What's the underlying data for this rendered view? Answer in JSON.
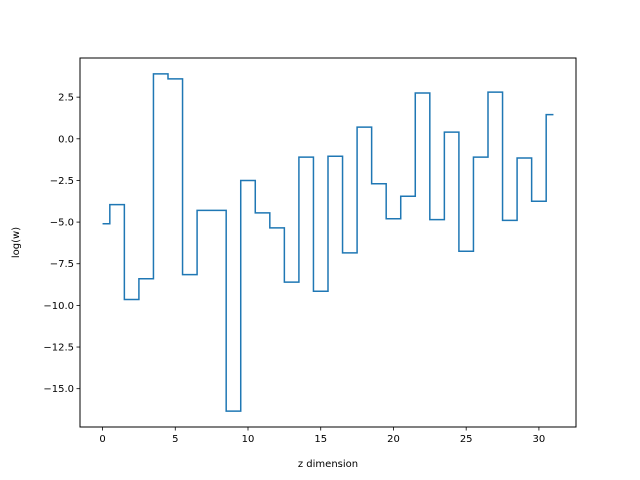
{
  "chart_data": {
    "type": "line",
    "drawstyle": "steps-mid",
    "title": "",
    "xlabel": "z dimension",
    "ylabel": "log(w)",
    "xlim": [
      -1.55,
      32.55
    ],
    "ylim": [
      -17.3,
      4.85
    ],
    "xticks": [
      0,
      5,
      10,
      15,
      20,
      25,
      30
    ],
    "xtick_labels": [
      "0",
      "5",
      "10",
      "15",
      "20",
      "25",
      "30"
    ],
    "yticks": [
      2.5,
      0.0,
      -2.5,
      -5.0,
      -7.5,
      -10.0,
      -12.5,
      -15.0
    ],
    "ytick_labels": [
      "2.5",
      "0.0",
      "−2.5",
      "−5.0",
      "−7.5",
      "−10.0",
      "−12.5",
      "−15.0"
    ],
    "grid": false,
    "legend": "none",
    "series": [
      {
        "color": "#1f77b4",
        "x": [
          0,
          1,
          2,
          3,
          4,
          5,
          6,
          7,
          8,
          9,
          10,
          11,
          12,
          13,
          14,
          15,
          16,
          17,
          18,
          19,
          20,
          21,
          22,
          23,
          24,
          25,
          26,
          27,
          28,
          29,
          30,
          31
        ],
        "values": [
          -5.1,
          -3.95,
          -9.65,
          -8.4,
          3.9,
          3.6,
          -8.15,
          -4.3,
          -4.3,
          -16.35,
          -2.5,
          -4.45,
          -5.35,
          -8.6,
          -1.1,
          -9.15,
          -1.05,
          -6.85,
          0.7,
          -2.7,
          -4.8,
          -3.45,
          2.75,
          -4.85,
          0.4,
          -6.75,
          -1.1,
          2.8,
          -4.9,
          -1.15,
          -3.75,
          1.45
        ]
      }
    ]
  }
}
